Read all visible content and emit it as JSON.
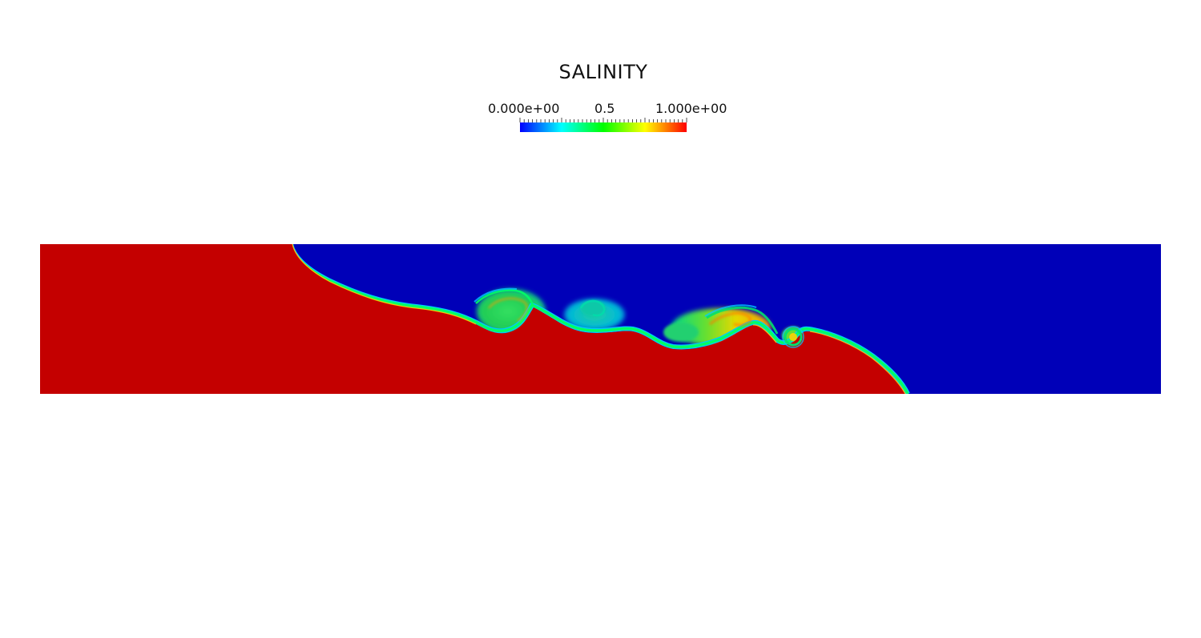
{
  "colorbar": {
    "title": "SALINITY",
    "min_label": "0.000e+00",
    "mid_label": "0.5",
    "max_label": "1.000e+00",
    "min_value": 0,
    "max_value": 1,
    "colormap": [
      "#0000ff",
      "#00ffff",
      "#00ff00",
      "#ffff00",
      "#ff0000"
    ]
  },
  "field": {
    "variable": "SALINITY",
    "dense_color": "#c40000",
    "light_color": "#0000b8",
    "interface_colors": [
      "#00c8ff",
      "#00ff66",
      "#ffee00"
    ],
    "mixed_color": "#22dd55"
  }
}
